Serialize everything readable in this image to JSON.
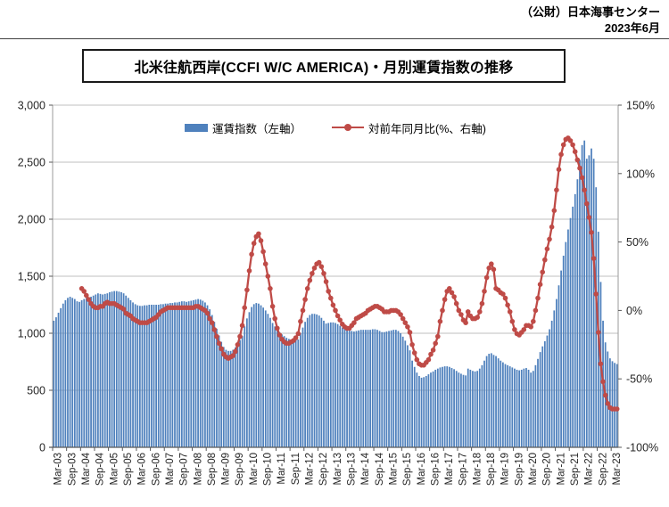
{
  "header": {
    "source": "（公財）日本海事センター",
    "date": "2023年6月"
  },
  "title": "北米往航西岸(CCFI W/C AMERICA)・月別運賃指数の推移",
  "legend": {
    "bars": "運賃指数（左軸）",
    "line": "対前年同月比(%、右軸)"
  },
  "colors": {
    "bar": "#4f81bd",
    "line": "#bf4b47",
    "grid": "#bfbfbf",
    "axis": "#9b9b9b",
    "axis_bottom": "#595959",
    "tick_text": "#262626"
  },
  "chart_data": {
    "type": "bar+line",
    "title": "北米往航西岸(CCFI W/C AMERICA)・月別運賃指数の推移",
    "start_month": "2003-03",
    "end_month": "2023-05",
    "grid": true,
    "legend_position": "top-center",
    "x_tick_labels": [
      "Mar-03",
      "Sep-03",
      "Mar-04",
      "Sep-04",
      "Mar-05",
      "Sep-05",
      "Mar-06",
      "Sep-06",
      "Mar-07",
      "Sep-07",
      "Mar-08",
      "Sep-08",
      "Mar-09",
      "Sep-09",
      "Mar-10",
      "Sep-10",
      "Mar-11",
      "Sep-11",
      "Mar-12",
      "Sep-12",
      "Mar-13",
      "Sep-13",
      "Mar-14",
      "Sep-14",
      "Mar-15",
      "Sep-15",
      "Mar-16",
      "Sep-16",
      "Mar-17",
      "Sep-17",
      "Mar-18",
      "Sep-18",
      "Mar-19",
      "Sep-19",
      "Mar-20",
      "Sep-20",
      "Mar-21",
      "Sep-21",
      "Mar-22",
      "Sep-22",
      "Mar-23"
    ],
    "left_axis": {
      "range": [
        0,
        3000
      ],
      "step": 500,
      "labels": [
        "0",
        "500",
        "1,000",
        "1,500",
        "2,000",
        "2,500",
        "3,000"
      ]
    },
    "right_axis": {
      "range": [
        -100,
        150
      ],
      "step": 50,
      "labels": [
        "-100%",
        "-50%",
        "0%",
        "50%",
        "100%",
        "150%"
      ]
    },
    "series": [
      {
        "name": "運賃指数（左軸）",
        "type": "bar",
        "axis": "left",
        "color": "#4f81bd",
        "start_index": 0,
        "values": [
          1110,
          1140,
          1180,
          1220,
          1260,
          1290,
          1310,
          1320,
          1310,
          1300,
          1280,
          1275,
          1290,
          1300,
          1310,
          1315,
          1320,
          1330,
          1340,
          1350,
          1345,
          1340,
          1345,
          1350,
          1360,
          1365,
          1370,
          1370,
          1365,
          1360,
          1350,
          1330,
          1310,
          1290,
          1270,
          1255,
          1245,
          1240,
          1240,
          1245,
          1245,
          1250,
          1250,
          1250,
          1250,
          1250,
          1255,
          1255,
          1260,
          1260,
          1265,
          1265,
          1270,
          1270,
          1275,
          1280,
          1280,
          1275,
          1280,
          1285,
          1290,
          1295,
          1300,
          1295,
          1285,
          1270,
          1245,
          1210,
          1160,
          1100,
          1040,
          980,
          925,
          880,
          855,
          845,
          845,
          855,
          875,
          905,
          940,
          975,
          1060,
          1130,
          1185,
          1230,
          1255,
          1265,
          1260,
          1245,
          1225,
          1200,
          1170,
          1135,
          1090,
          1060,
          1030,
          1010,
          990,
          975,
          960,
          950,
          945,
          940,
          940,
          945,
          1000,
          1050,
          1100,
          1135,
          1160,
          1170,
          1170,
          1165,
          1155,
          1135,
          1110,
          1085,
          1090,
          1095,
          1095,
          1090,
          1080,
          1065,
          1050,
          1040,
          1030,
          1025,
          1020,
          1015,
          1020,
          1025,
          1030,
          1030,
          1030,
          1030,
          1030,
          1035,
          1035,
          1030,
          1020,
          1010,
          1010,
          1015,
          1020,
          1025,
          1030,
          1030,
          1020,
          1000,
          970,
          935,
          895,
          850,
          760,
          705,
          655,
          625,
          610,
          615,
          625,
          640,
          655,
          665,
          680,
          690,
          700,
          705,
          710,
          710,
          705,
          695,
          685,
          670,
          655,
          645,
          635,
          630,
          690,
          680,
          670,
          665,
          670,
          690,
          720,
          760,
          800,
          820,
          825,
          810,
          800,
          780,
          760,
          745,
          730,
          720,
          710,
          700,
          690,
          680,
          675,
          680,
          690,
          695,
          680,
          655,
          670,
          720,
          775,
          835,
          885,
          930,
          980,
          1035,
          1110,
          1200,
          1300,
          1420,
          1550,
          1680,
          1800,
          1910,
          2010,
          2110,
          2220,
          2350,
          2520,
          2650,
          2690,
          2530,
          2560,
          2620,
          2530,
          2280,
          1890,
          1450,
          1110,
          920,
          840,
          780,
          755,
          740,
          730
        ]
      },
      {
        "name": "対前年同月比(%、右軸)",
        "type": "line",
        "axis": "right",
        "color": "#bf4b47",
        "start_index": 12,
        "values": [
          16,
          14,
          11,
          8,
          5,
          3,
          2,
          2,
          3,
          3,
          5,
          6,
          5,
          5,
          5,
          4,
          3,
          2,
          1,
          -2,
          -3,
          -4,
          -6,
          -7,
          -8,
          -9,
          -9,
          -9,
          -9,
          -8,
          -7,
          -6,
          -5,
          -3,
          -1,
          0,
          1,
          2,
          2,
          2,
          2,
          2,
          2,
          2,
          2,
          2,
          2,
          2,
          2,
          3,
          3,
          2,
          1,
          0,
          -2,
          -6,
          -9,
          -14,
          -19,
          -24,
          -28,
          -32,
          -34,
          -35,
          -34,
          -33,
          -30,
          -25,
          -19,
          -11,
          2,
          15,
          29,
          41,
          49,
          54,
          56,
          51,
          43,
          34,
          25,
          16,
          3,
          -6,
          -13,
          -18,
          -21,
          -23,
          -24,
          -24,
          -23,
          -22,
          -20,
          -17,
          -8,
          0,
          8,
          16,
          22,
          27,
          31,
          34,
          35,
          32,
          27,
          21,
          14,
          9,
          4,
          0,
          -4,
          -7,
          -10,
          -12,
          -13,
          -13,
          -11,
          -9,
          -6,
          -5,
          -4,
          -3,
          -2,
          0,
          1,
          2,
          3,
          3,
          2,
          1,
          -1,
          -1,
          -1,
          0,
          0,
          0,
          -1,
          -3,
          -6,
          -9,
          -12,
          -16,
          -25,
          -31,
          -36,
          -39,
          -40,
          -40,
          -38,
          -36,
          -32,
          -29,
          -24,
          -19,
          -8,
          0,
          8,
          14,
          16,
          13,
          10,
          5,
          0,
          -3,
          -7,
          -9,
          -1,
          -4,
          -6,
          -6,
          -5,
          -1,
          5,
          14,
          24,
          31,
          34,
          30,
          16,
          15,
          13,
          12,
          9,
          4,
          -1,
          -8,
          -14,
          -17,
          -18,
          -16,
          -14,
          -11,
          -11,
          -12,
          -8,
          0,
          9,
          19,
          28,
          37,
          45,
          52,
          61,
          73,
          88,
          103,
          114,
          121,
          125,
          126,
          124,
          121,
          116,
          110,
          104,
          97,
          88,
          78,
          68,
          57,
          38,
          12,
          -16,
          -39,
          -52,
          -62,
          -68,
          -71,
          -72,
          -72,
          -72
        ]
      }
    ]
  }
}
